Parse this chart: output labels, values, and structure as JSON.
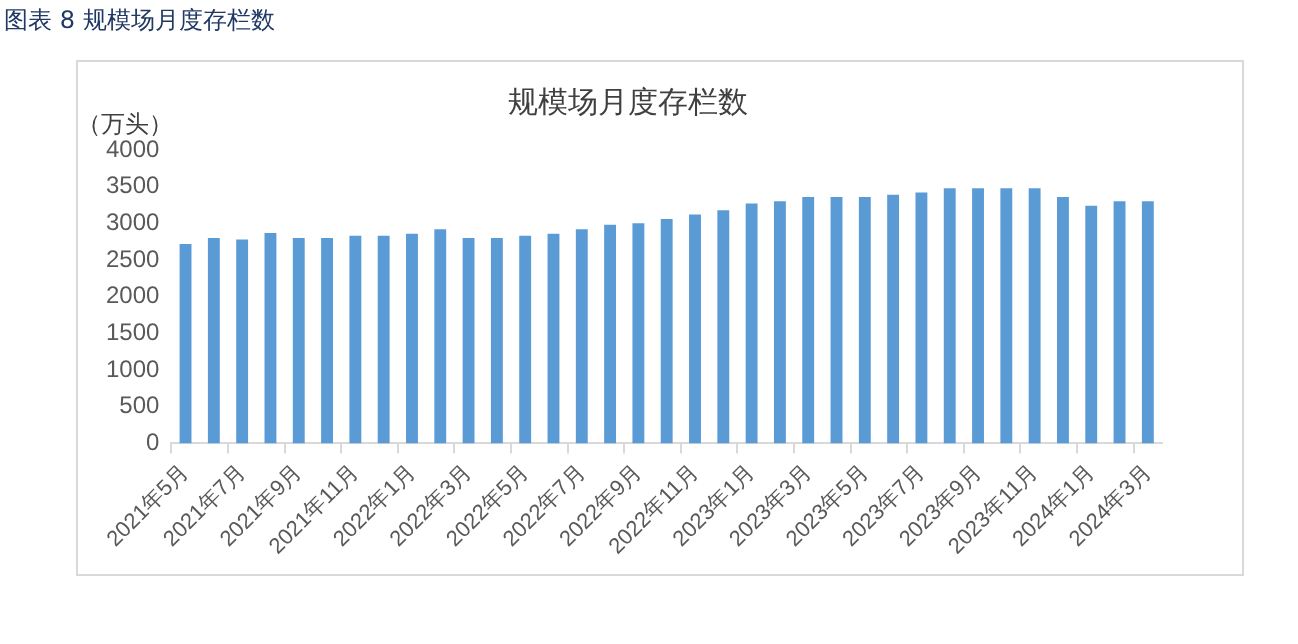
{
  "chart_data": {
    "type": "bar",
    "title": "规模场月度存栏数",
    "ylabel": "（万头）",
    "annotations": [
      "图表 8  规模场月度存栏数"
    ],
    "categories": [
      "2021年5月",
      null,
      "2021年7月",
      null,
      "2021年9月",
      null,
      "2021年11月",
      null,
      "2022年1月",
      null,
      "2022年3月",
      null,
      "2022年5月",
      null,
      "2022年7月",
      null,
      "2022年9月",
      null,
      "2022年11月",
      null,
      "2023年1月",
      null,
      "2023年3月",
      null,
      "2023年5月",
      null,
      "2023年7月",
      null,
      "2023年9月",
      null,
      "2023年11月",
      null,
      "2024年1月",
      null,
      "2024年3月"
    ],
    "values": [
      2720,
      2800,
      2780,
      2870,
      2800,
      2800,
      2830,
      2830,
      2860,
      2920,
      2800,
      2800,
      2830,
      2860,
      2920,
      2980,
      3000,
      3060,
      3120,
      3180,
      3270,
      3300,
      3360,
      3360,
      3360,
      3390,
      3420,
      3480,
      3480,
      3480,
      3480,
      3360,
      3240,
      3300,
      3300
    ],
    "color": "#5b9bd5",
    "ylim": [
      0,
      4000
    ],
    "yticks": [
      0,
      500,
      1000,
      1500,
      2000,
      2500,
      3000,
      3500,
      4000
    ],
    "grid": false,
    "legend": false
  }
}
